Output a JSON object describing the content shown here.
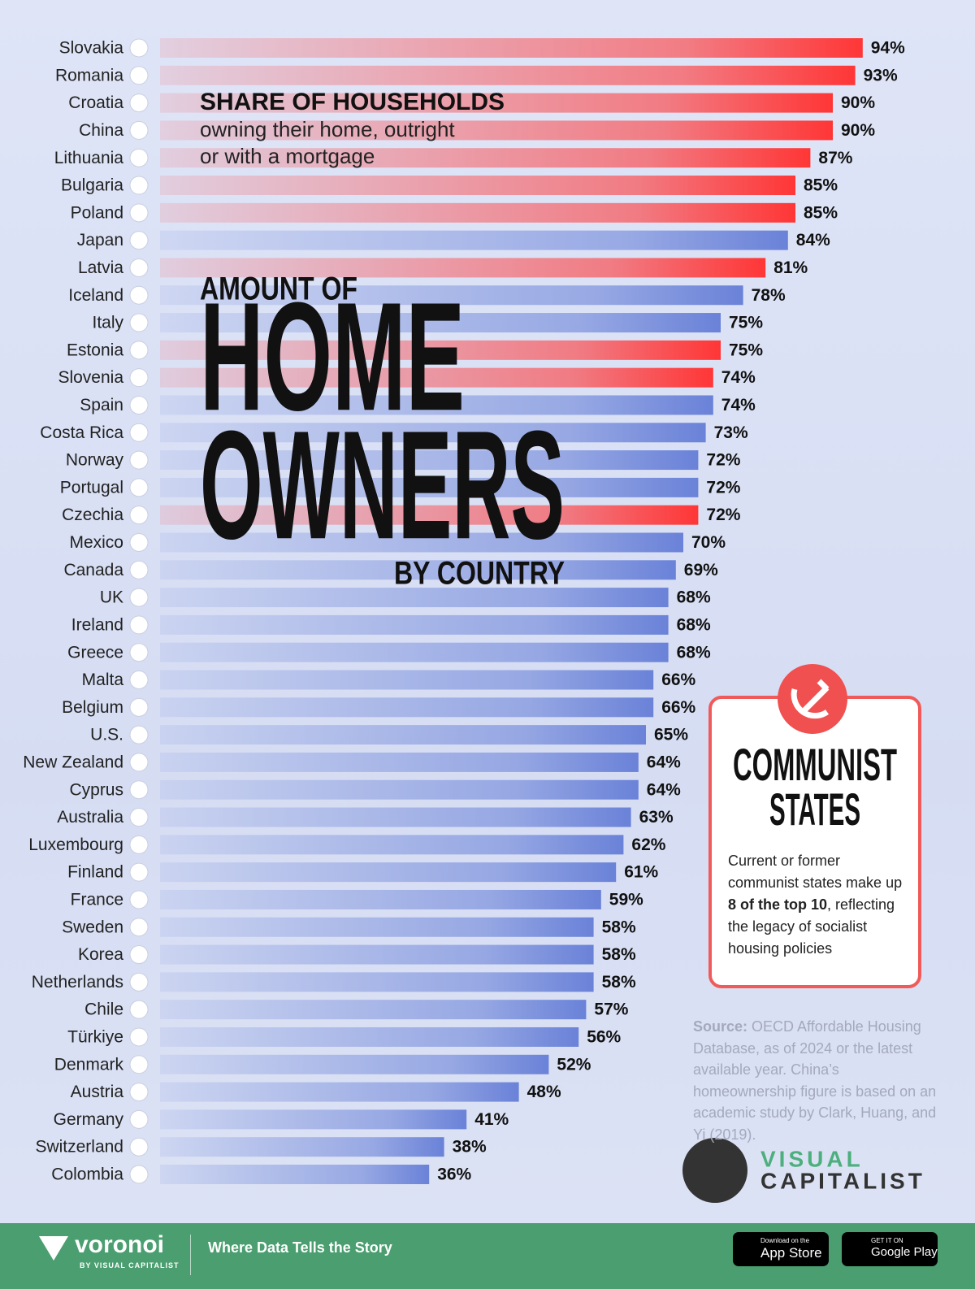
{
  "chart_data": {
    "type": "bar",
    "orientation": "horizontal",
    "subtitle_heading": "SHARE OF HOUSEHOLDS",
    "subtitle_lines": [
      "owning their home, outright",
      "or with a mortgage"
    ],
    "title_lines": [
      "AMOUNT OF",
      "HOME",
      "OWNERS",
      "BY COUNTRY"
    ],
    "categories": [
      "Slovakia",
      "Romania",
      "Croatia",
      "China",
      "Lithuania",
      "Bulgaria",
      "Poland",
      "Japan",
      "Latvia",
      "Iceland",
      "Italy",
      "Estonia",
      "Slovenia",
      "Spain",
      "Costa Rica",
      "Norway",
      "Portugal",
      "Czechia",
      "Mexico",
      "Canada",
      "UK",
      "Ireland",
      "Greece",
      "Malta",
      "Belgium",
      "U.S.",
      "New Zealand",
      "Cyprus",
      "Australia",
      "Luxembourg",
      "Finland",
      "France",
      "Sweden",
      "Korea",
      "Netherlands",
      "Chile",
      "Türkiye",
      "Denmark",
      "Austria",
      "Germany",
      "Switzerland",
      "Colombia"
    ],
    "values": [
      94,
      93,
      90,
      90,
      87,
      85,
      85,
      84,
      81,
      78,
      75,
      75,
      74,
      74,
      73,
      72,
      72,
      72,
      70,
      69,
      68,
      68,
      68,
      66,
      66,
      65,
      64,
      64,
      63,
      62,
      61,
      59,
      58,
      58,
      58,
      57,
      56,
      52,
      48,
      41,
      38,
      36
    ],
    "value_labels": [
      "94%",
      "93%",
      "90%",
      "90%",
      "87%",
      "85%",
      "85%",
      "84%",
      "81%",
      "78%",
      "75%",
      "75%",
      "74%",
      "74%",
      "73%",
      "72%",
      "72%",
      "72%",
      "70%",
      "69%",
      "68%",
      "68%",
      "68%",
      "66%",
      "66%",
      "65%",
      "64%",
      "64%",
      "63%",
      "62%",
      "61%",
      "59%",
      "58%",
      "58%",
      "58%",
      "57%",
      "56%",
      "52%",
      "48%",
      "41%",
      "38%",
      "36%"
    ],
    "bar_colors": [
      "#ff3636",
      "#ff3636",
      "#ff3636",
      "#ff3636",
      "#ff3636",
      "#ff3636",
      "#ff3636",
      "#6a82d8",
      "#ff3636",
      "#6a82d8",
      "#6a82d8",
      "#ff3636",
      "#ff3636",
      "#6a82d8",
      "#6a82d8",
      "#6a82d8",
      "#6a82d8",
      "#ff3636",
      "#6a82d8",
      "#6a82d8",
      "#6a82d8",
      "#6a82d8",
      "#6a82d8",
      "#6a82d8",
      "#6a82d8",
      "#6a82d8",
      "#6a82d8",
      "#6a82d8",
      "#6a82d8",
      "#6a82d8",
      "#6a82d8",
      "#6a82d8",
      "#6a82d8",
      "#6a82d8",
      "#6a82d8",
      "#6a82d8",
      "#6a82d8",
      "#6a82d8",
      "#6a82d8",
      "#6a82d8",
      "#6a82d8",
      "#6a82d8"
    ],
    "xlim": [
      0,
      100
    ]
  },
  "annotation": {
    "heading_lines": [
      "COMMUNIST",
      "STATES"
    ],
    "text_before": "Current or former communist states make up ",
    "text_bold": "8 of the top 10",
    "text_after": ", reflecting the legacy of socialist housing policies"
  },
  "source": {
    "label": "Source:",
    "text": " OECD Affordable Housing Database, as of 2024 or the latest available year. China’s homeownership figure is based on an academic study by Clark, Huang, and Yi (2019)."
  },
  "branding": {
    "line1": "VISUAL",
    "line2": "CAPITALIST"
  },
  "footer": {
    "logo": "voronoi",
    "logo_sub": "BY VISUAL CAPITALIST",
    "tagline": "Where Data Tells the Story",
    "app_store_small": "Download on the",
    "app_store": "App Store",
    "google_small": "GET IT ON",
    "google": "Google Play"
  }
}
